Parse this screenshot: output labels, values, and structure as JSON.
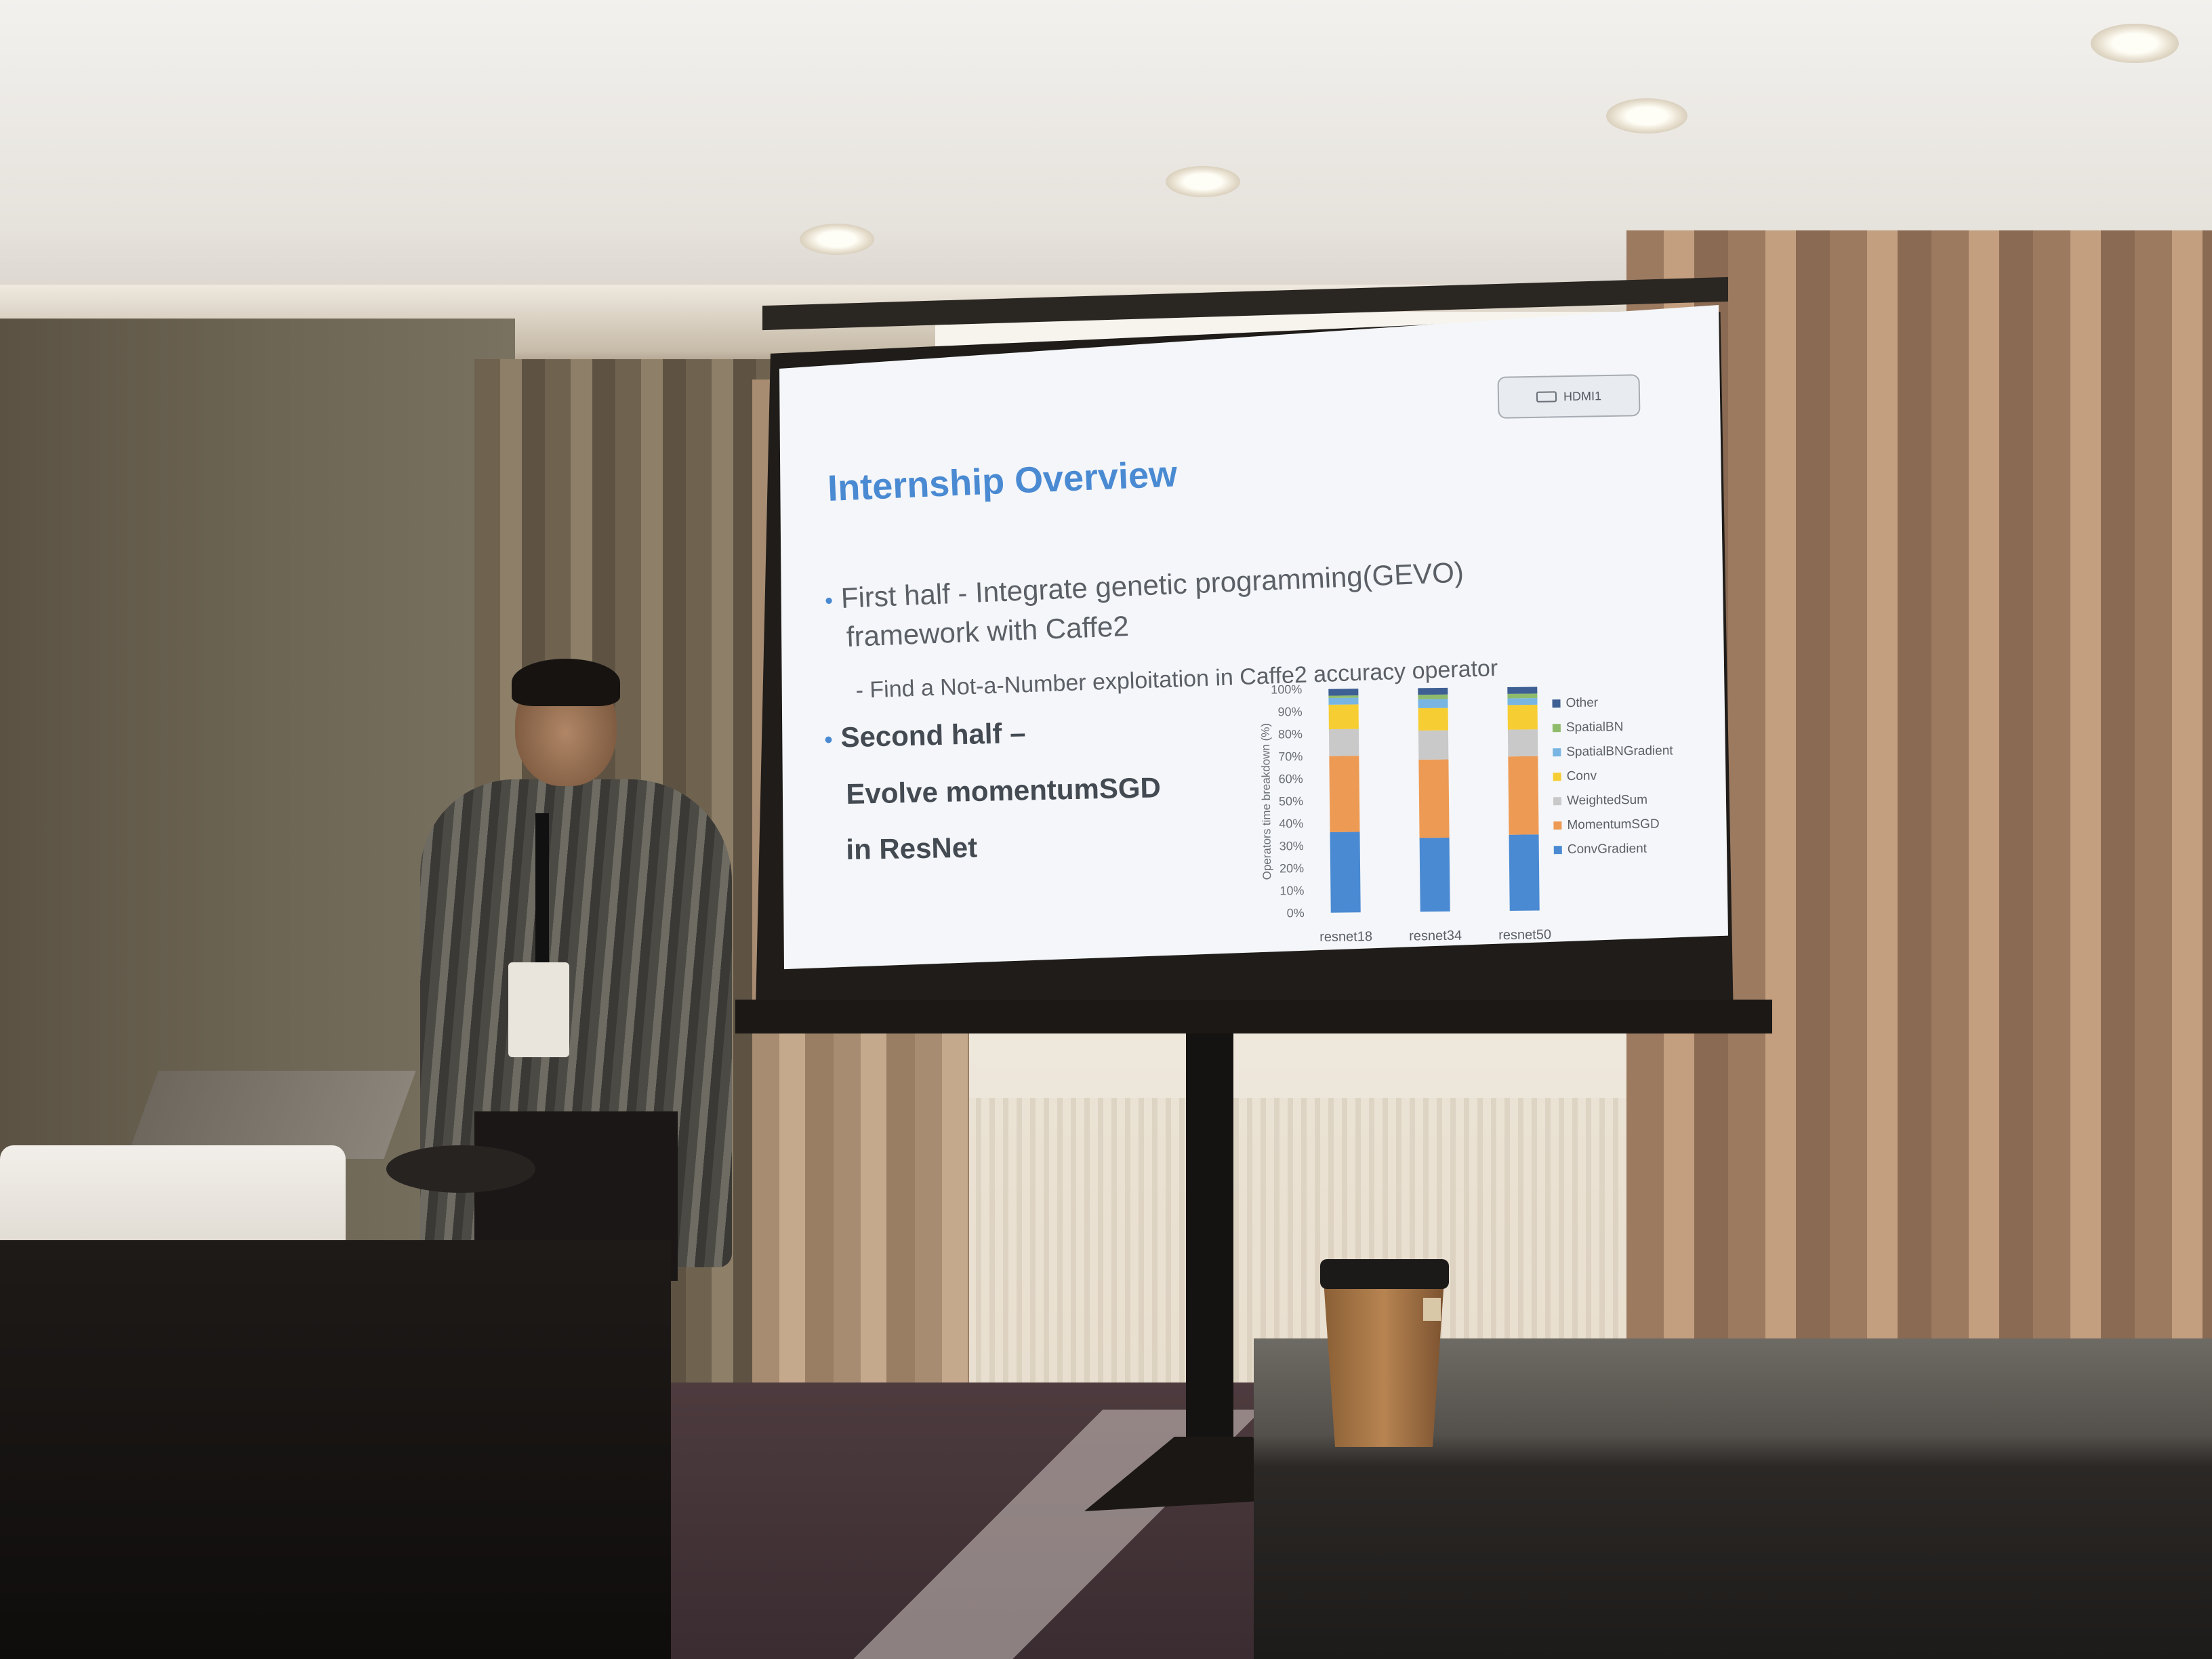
{
  "slide": {
    "badge": "HDMI1",
    "title": "Internship Overview",
    "bullets": {
      "first_line1": "First half - Integrate genetic programming(GEVO)",
      "first_line2": "framework with Caffe2",
      "first_sub": "- Find a Not-a-Number exploitation in Caffe2 accuracy operator",
      "second_line1": "Second half –",
      "second_line2": "Evolve momentumSGD",
      "second_line3": "in ResNet"
    }
  },
  "chart_data": {
    "type": "bar",
    "stacked": true,
    "ylabel": "Operators time breakdown (%)",
    "yticks": [
      "0%",
      "10%",
      "20%",
      "30%",
      "40%",
      "50%",
      "60%",
      "70%",
      "80%",
      "90%",
      "100%"
    ],
    "ylim": [
      0,
      100
    ],
    "categories": [
      "resnet18",
      "resnet34",
      "resnet50"
    ],
    "legend_position": "right",
    "series": [
      {
        "name": "ConvGradient",
        "color": "#4a8ad2",
        "values": [
          36,
          33,
          34
        ]
      },
      {
        "name": "MomentumSGD",
        "color": "#ed9a54",
        "values": [
          34,
          35,
          35
        ]
      },
      {
        "name": "WeightedSum",
        "color": "#c9c9c9",
        "values": [
          12,
          13,
          12
        ]
      },
      {
        "name": "Conv",
        "color": "#f6cd33",
        "values": [
          11,
          10,
          11
        ]
      },
      {
        "name": "SpatialBNGradient",
        "color": "#78b5e2",
        "values": [
          3,
          4,
          3
        ]
      },
      {
        "name": "SpatialBN",
        "color": "#8fbc6c",
        "values": [
          1,
          2,
          2
        ]
      },
      {
        "name": "Other",
        "color": "#3d5f93",
        "values": [
          3,
          3,
          3
        ]
      }
    ]
  }
}
